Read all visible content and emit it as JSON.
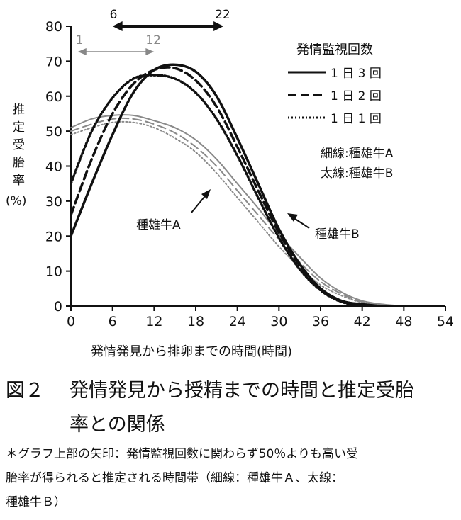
{
  "chart_data": {
    "type": "line",
    "xlabel": "発情発見から排卵までの時間(時間)",
    "ylabel": [
      "推",
      "定",
      "受",
      "胎",
      "率",
      "(%)"
    ],
    "x_ticks": [
      0,
      6,
      12,
      18,
      24,
      30,
      36,
      42,
      48,
      54
    ],
    "y_ticks": [
      0,
      10,
      20,
      30,
      40,
      50,
      60,
      70,
      80
    ],
    "xlim": [
      0,
      54
    ],
    "ylim": [
      0,
      80
    ],
    "legend": {
      "title": "発情監視回数",
      "entries": [
        "1 日 3 回",
        "1 日 2 回",
        "1 日 1 回"
      ],
      "line_note_thin": "細線:種雄牛A",
      "line_note_thick": "太線:種雄牛B",
      "placement": "top-right"
    },
    "annotations": {
      "bull_a": "種雄牛A",
      "bull_b": "種雄牛B",
      "thin_arrow": {
        "start": 1,
        "end": 12,
        "start_label": "1",
        "end_label": "12"
      },
      "thick_arrow": {
        "start": 6,
        "end": 22,
        "start_label": "6",
        "end_label": "22"
      }
    },
    "series": [
      {
        "bull": "A",
        "monitoring": "1 日 3 回",
        "x": [
          0,
          3,
          6,
          9,
          12,
          15,
          18,
          21,
          24,
          27,
          30,
          33,
          36,
          39,
          42,
          45,
          48
        ],
        "values": [
          51,
          53.5,
          54.5,
          54.5,
          53,
          51,
          47.5,
          42,
          35,
          28,
          20.5,
          14,
          8,
          4,
          1.5,
          0.5,
          0
        ]
      },
      {
        "bull": "A",
        "monitoring": "1 日 2 回",
        "x": [
          0,
          3,
          6,
          9,
          12,
          15,
          18,
          21,
          24,
          27,
          30,
          33,
          36,
          39,
          42,
          45,
          48
        ],
        "values": [
          50,
          52,
          53.5,
          53.5,
          52,
          49.5,
          45.5,
          40,
          33,
          26,
          19,
          12.5,
          7,
          3.5,
          1.2,
          0.3,
          0
        ]
      },
      {
        "bull": "A",
        "monitoring": "1 日 1 回",
        "x": [
          0,
          3,
          6,
          9,
          12,
          15,
          18,
          21,
          24,
          27,
          30,
          33,
          36,
          39,
          42,
          45,
          48
        ],
        "values": [
          49,
          51,
          52.5,
          52.5,
          51,
          48,
          44,
          38,
          31,
          24,
          17,
          11,
          6,
          3,
          1,
          0.2,
          0
        ]
      },
      {
        "bull": "B",
        "monitoring": "1 日 3 回",
        "x": [
          0,
          3,
          6,
          9,
          12,
          15,
          18,
          21,
          24,
          27,
          30,
          33,
          36,
          39,
          42,
          45,
          48
        ],
        "values": [
          20,
          35,
          49,
          61,
          67.5,
          69,
          67,
          60,
          48,
          35,
          22,
          12,
          5,
          1.5,
          0.5,
          0,
          0
        ]
      },
      {
        "bull": "B",
        "monitoring": "1 日 2 回",
        "x": [
          0,
          3,
          6,
          9,
          12,
          15,
          18,
          21,
          24,
          27,
          30,
          33,
          36,
          39,
          42,
          45,
          48
        ],
        "values": [
          26,
          42,
          55,
          63.5,
          67.5,
          68,
          64.5,
          57,
          45.5,
          33,
          21,
          11.5,
          5,
          1.5,
          0.5,
          0,
          0
        ]
      },
      {
        "bull": "B",
        "monitoring": "1 日 1 回",
        "x": [
          0,
          3,
          6,
          9,
          12,
          15,
          18,
          21,
          24,
          27,
          30,
          33,
          36,
          39,
          42,
          45,
          48
        ],
        "values": [
          35,
          50,
          59.5,
          65,
          66,
          65,
          61,
          53.5,
          43,
          31,
          19.5,
          10.5,
          4.5,
          1.2,
          0.3,
          0,
          0
        ]
      }
    ]
  },
  "caption": {
    "label": "図２",
    "line1": "発情発見から授精までの時間と推定受胎",
    "line2": "率との関係"
  },
  "note": {
    "line1": "＊グラフ上部の矢印：発情監視回数に関わらず50％よりも高い受",
    "line2": "胎率が得られると推定される時間帯（細線：種雄牛Ａ、太線：",
    "line3": "種雄牛Ｂ）"
  }
}
